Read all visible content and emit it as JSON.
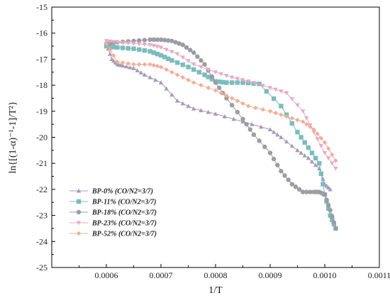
{
  "chart_data": {
    "type": "line",
    "xlabel": "1/T",
    "ylabel": "ln{[(1-α)⁻¹-1]/T²}",
    "xlim": [
      0.0005,
      0.0011
    ],
    "ylim": [
      -25,
      -15
    ],
    "xticks": [
      "0.0006",
      "0.0007",
      "0.0008",
      "0.0009",
      "0.0010",
      "0.0011"
    ],
    "yticks": [
      "-15",
      "-16",
      "-17",
      "-18",
      "-19",
      "-20",
      "-21",
      "-22",
      "-23",
      "-24",
      "-25"
    ],
    "grid": false,
    "legend_position": "bottom-left",
    "series": [
      {
        "name": "BP-0% (CO/N2=3/7)",
        "color": "#a59bb8",
        "marker": "triangle-up",
        "x": [
          0.0006,
          0.00061,
          0.00062,
          0.00063,
          0.00065,
          0.00067,
          0.0007,
          0.00073,
          0.00076,
          0.0008,
          0.00085,
          0.0009,
          0.00092,
          0.00095,
          0.00097,
          0.00099,
          0.001,
          0.00101
        ],
        "y": [
          -16.4,
          -17.0,
          -17.2,
          -17.25,
          -17.35,
          -17.6,
          -17.9,
          -18.6,
          -18.9,
          -19.1,
          -19.4,
          -19.7,
          -20.0,
          -20.5,
          -20.8,
          -21.2,
          -21.8,
          -22.0
        ]
      },
      {
        "name": "BP-11% (CO/N2=3/7)",
        "color": "#7bbcbc",
        "marker": "square",
        "x": [
          0.0006,
          0.00062,
          0.00065,
          0.00068,
          0.0007,
          0.00072,
          0.00075,
          0.00078,
          0.0008,
          0.00082,
          0.00085,
          0.00088,
          0.00092,
          0.00095,
          0.00097,
          0.00099,
          0.001,
          0.00101,
          0.00102
        ],
        "y": [
          -16.5,
          -16.55,
          -16.6,
          -16.7,
          -16.85,
          -17.05,
          -17.3,
          -17.6,
          -17.85,
          -17.9,
          -17.9,
          -17.95,
          -18.8,
          -19.8,
          -20.4,
          -21.0,
          -22.2,
          -23.0,
          -23.5
        ]
      },
      {
        "name": "BP-18% (CO/N2=3/7)",
        "color": "#9c9ca3",
        "marker": "circle",
        "x": [
          0.0006,
          0.00062,
          0.00065,
          0.00068,
          0.0007,
          0.00072,
          0.00074,
          0.00076,
          0.00078,
          0.0008,
          0.00082,
          0.00085,
          0.00087,
          0.0009,
          0.00092,
          0.00094,
          0.00096,
          0.00098,
          0.00099,
          0.001,
          0.00101,
          0.00102
        ],
        "y": [
          -16.4,
          -16.35,
          -16.3,
          -16.25,
          -16.25,
          -16.3,
          -16.45,
          -16.75,
          -17.2,
          -17.9,
          -18.5,
          -19.3,
          -19.9,
          -20.6,
          -21.3,
          -21.8,
          -22.1,
          -22.1,
          -22.1,
          -22.2,
          -22.8,
          -23.5
        ]
      },
      {
        "name": "BP-23% (CO/N2=3/7)",
        "color": "#e8a9c6",
        "marker": "triangle-down",
        "x": [
          0.0006,
          0.00062,
          0.00065,
          0.00068,
          0.0007,
          0.00073,
          0.00076,
          0.0008,
          0.00083,
          0.00086,
          0.0009,
          0.00093,
          0.00096,
          0.00098,
          0.001,
          0.00102
        ],
        "y": [
          -16.3,
          -16.35,
          -16.4,
          -16.45,
          -16.55,
          -16.8,
          -17.2,
          -17.5,
          -17.7,
          -17.85,
          -18.1,
          -18.3,
          -19.0,
          -19.8,
          -20.6,
          -21.2
        ]
      },
      {
        "name": "BP-52% (CO/N2=3/7)",
        "color": "#f2ae96",
        "marker": "diamond",
        "x": [
          0.0006,
          0.00062,
          0.00065,
          0.00068,
          0.0007,
          0.00073,
          0.00076,
          0.0008,
          0.00083,
          0.00086,
          0.0009,
          0.00093,
          0.00096,
          0.00098,
          0.001,
          0.00102
        ],
        "y": [
          -16.4,
          -17.1,
          -17.2,
          -17.2,
          -17.3,
          -17.6,
          -17.9,
          -18.2,
          -18.5,
          -18.8,
          -19.0,
          -19.2,
          -19.4,
          -19.7,
          -20.2,
          -20.9
        ]
      }
    ]
  }
}
